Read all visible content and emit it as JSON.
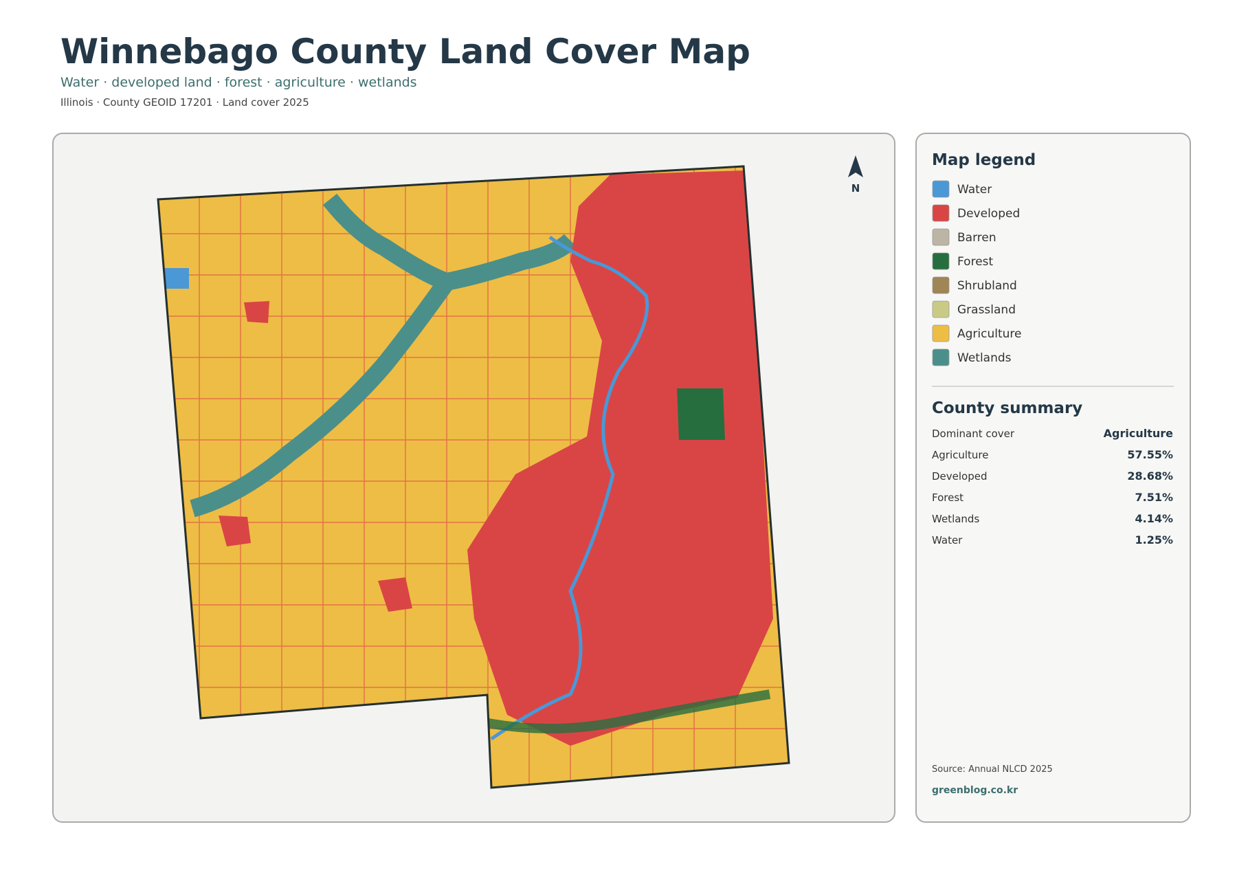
{
  "header": {
    "title": "Winnebago County Land Cover Map",
    "subtitle": "Water · developed land · forest · agriculture · wetlands",
    "meta": "Illinois · County GEOID 17201 · Land cover 2025"
  },
  "map": {
    "north": "N"
  },
  "legend": {
    "title": "Map legend",
    "items": [
      {
        "label": "Water",
        "color": "#4a98d6"
      },
      {
        "label": "Developed",
        "color": "#d94545"
      },
      {
        "label": "Barren",
        "color": "#bcb4a4"
      },
      {
        "label": "Forest",
        "color": "#276e3f"
      },
      {
        "label": "Shrubland",
        "color": "#a08555"
      },
      {
        "label": "Grassland",
        "color": "#c9cb85"
      },
      {
        "label": "Agriculture",
        "color": "#eebd45"
      },
      {
        "label": "Wetlands",
        "color": "#4b8f8a"
      }
    ]
  },
  "summary": {
    "title": "County summary",
    "rows": [
      [
        "Dominant cover",
        "Agriculture"
      ],
      [
        "Agriculture",
        "57.55%"
      ],
      [
        "Developed",
        "28.68%"
      ],
      [
        "Forest",
        "7.51%"
      ],
      [
        "Wetlands",
        "4.14%"
      ],
      [
        "Water",
        "1.25%"
      ]
    ]
  },
  "footer": {
    "source": "Source: Annual NLCD 2025",
    "site": "greenblog.co.kr"
  }
}
